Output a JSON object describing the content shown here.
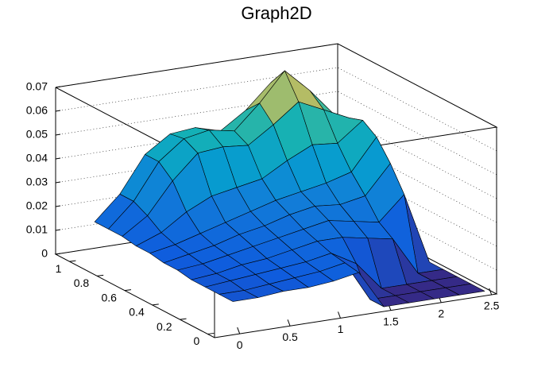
{
  "chart_data": {
    "type": "surface",
    "title": "Graph2D",
    "x": [
      0,
      0.25,
      0.5,
      0.75,
      1,
      1.25,
      1.5,
      1.75,
      2,
      2.25,
      2.5
    ],
    "y": [
      0,
      0.1,
      0.2,
      0.3,
      0.4,
      0.5,
      0.6,
      0.7,
      0.8,
      0.9,
      1
    ],
    "z": [
      [
        0.012,
        0.012,
        0.013,
        0.013,
        0.014,
        0.016,
        0,
        0,
        0,
        0,
        0
      ],
      [
        0.012,
        0.012,
        0.013,
        0.014,
        0.015,
        0.017,
        0,
        0,
        0,
        0,
        0
      ],
      [
        0.012,
        0.013,
        0.014,
        0.015,
        0.016,
        0.018,
        0.012,
        0,
        0,
        0,
        0
      ],
      [
        0.012,
        0.013,
        0.015,
        0.016,
        0.018,
        0.02,
        0.02,
        0.018,
        0.016,
        0,
        0
      ],
      [
        0.013,
        0.014,
        0.016,
        0.018,
        0.02,
        0.022,
        0.024,
        0.022,
        0.02,
        0.03,
        0
      ],
      [
        0.013,
        0.015,
        0.017,
        0.02,
        0.022,
        0.025,
        0.027,
        0.026,
        0.028,
        0.04,
        0
      ],
      [
        0.014,
        0.016,
        0.019,
        0.022,
        0.025,
        0.028,
        0.03,
        0.032,
        0.035,
        0.048,
        0
      ],
      [
        0.014,
        0.018,
        0.025,
        0.03,
        0.032,
        0.034,
        0.04,
        0.045,
        0.044,
        0.052,
        0
      ],
      [
        0.015,
        0.022,
        0.035,
        0.045,
        0.046,
        0.045,
        0.052,
        0.06,
        0.055,
        0.05,
        0
      ],
      [
        0.015,
        0.025,
        0.04,
        0.048,
        0.05,
        0.048,
        0.058,
        0.07,
        0.06,
        0.048,
        0
      ],
      [
        0.015,
        0.025,
        0.04,
        0.047,
        0.048,
        0.045,
        0.052,
        0.062,
        0.055,
        0.045,
        0
      ]
    ],
    "xlim": [
      -0.25,
      2.55
    ],
    "ylim": [
      -0.05,
      1.1
    ],
    "zlim": [
      0,
      0.07
    ],
    "xticks": [
      0,
      0.5,
      1,
      1.5,
      2,
      2.5
    ],
    "yticks": [
      0,
      0.2,
      0.4,
      0.6,
      0.8,
      1
    ],
    "zticks": [
      0,
      0.01,
      0.02,
      0.03,
      0.04,
      0.05,
      0.06,
      0.07
    ],
    "grid": true
  }
}
